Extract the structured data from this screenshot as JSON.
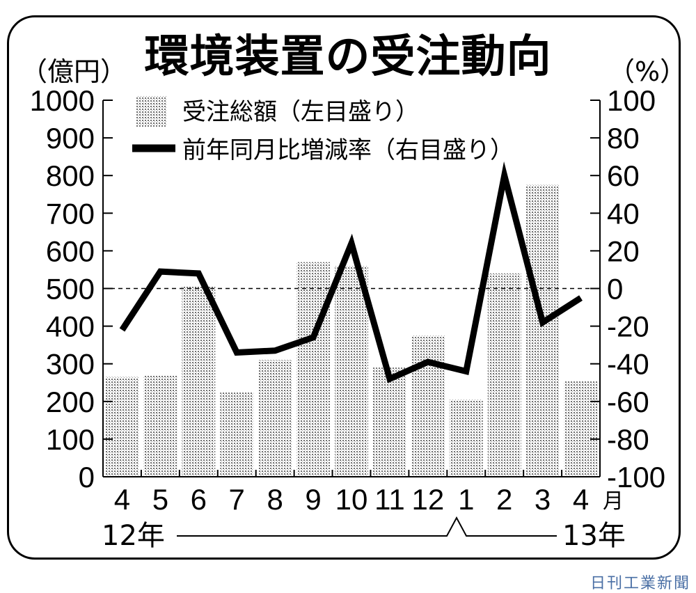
{
  "chart_data": {
    "type": "bar+line",
    "title": "環境装置の受注動向",
    "y_left_unit": "（億円）",
    "y_right_unit": "（%）",
    "y_left_ticks": [
      "1000",
      "900",
      "800",
      "700",
      "600",
      "500",
      "400",
      "300",
      "200",
      "100",
      "0"
    ],
    "y_right_ticks": [
      "100",
      "80",
      "60",
      "40",
      "20",
      "0",
      "-20",
      "-40",
      "-60",
      "-80",
      "-100"
    ],
    "ylim_left": [
      0,
      1000
    ],
    "ylim_right": [
      -100,
      100
    ],
    "categories": [
      "4",
      "5",
      "6",
      "7",
      "8",
      "9",
      "10",
      "11",
      "12",
      "1",
      "2",
      "3",
      "4"
    ],
    "month_suffix": "月",
    "year_start_label": "12年",
    "year_end_label": "13年",
    "series": [
      {
        "name": "受注総額（左目盛り）",
        "kind": "bar",
        "axis": "left",
        "values": [
          265,
          270,
          505,
          225,
          310,
          570,
          560,
          290,
          375,
          205,
          540,
          775,
          255
        ]
      },
      {
        "name": "前年同月比増減率（右目盛り）",
        "kind": "line",
        "axis": "right",
        "values": [
          -22,
          9,
          8,
          -34,
          -33,
          -26,
          24,
          -48,
          -39,
          -44,
          60,
          -18,
          -5
        ]
      }
    ],
    "reference_line": 0,
    "credit": "日刊工業新聞"
  }
}
